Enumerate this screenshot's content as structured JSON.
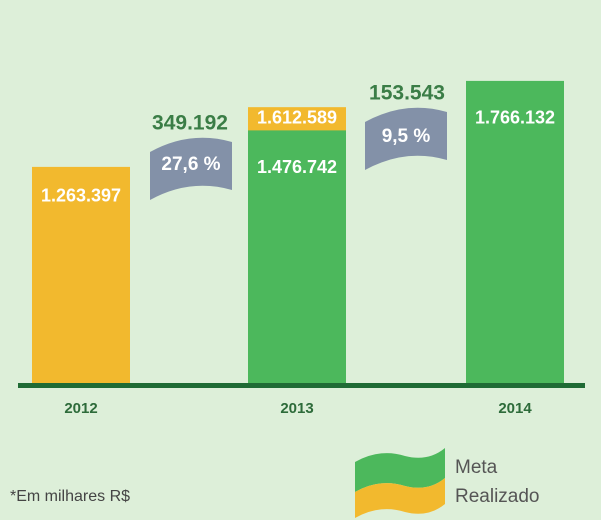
{
  "chart_data": {
    "type": "bar",
    "categories": [
      "2012",
      "2013",
      "2014"
    ],
    "series": [
      {
        "name": "Meta",
        "color": "#4cb85c",
        "values": [
          null,
          1476742,
          1766132
        ],
        "value_labels": [
          null,
          "1.476.742",
          "1.766.132"
        ]
      },
      {
        "name": "Realizado",
        "color": "#f2b92e",
        "values": [
          1263397,
          1612589,
          null
        ],
        "value_labels": [
          "1.263.397",
          "1.612.589",
          null
        ]
      }
    ],
    "ylim": [
      0,
      1900000
    ],
    "annotations": [
      {
        "amount": "349.192",
        "percent": "27,6 %"
      },
      {
        "amount": "153.543",
        "percent": "9,5 %"
      }
    ],
    "footnote": "*Em milhares R$"
  }
}
